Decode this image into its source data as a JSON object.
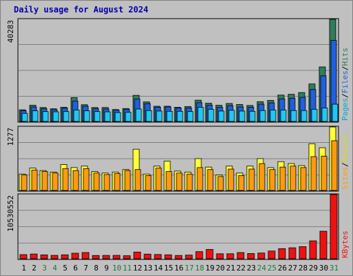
{
  "title": "Daily usage for August 2024",
  "chart_data": {
    "type": "bar",
    "categories": [
      "1",
      "2",
      "3",
      "4",
      "5",
      "6",
      "7",
      "8",
      "9",
      "10",
      "11",
      "12",
      "13",
      "14",
      "15",
      "16",
      "17",
      "18",
      "19",
      "20",
      "21",
      "22",
      "23",
      "24",
      "25",
      "26",
      "27",
      "28",
      "29",
      "30",
      "31"
    ],
    "weekend_days": [
      "3",
      "4",
      "10",
      "11",
      "17",
      "18",
      "24",
      "25",
      "31"
    ],
    "colors": {
      "hits": "#2e7d5b",
      "files": "#1f5fe0",
      "pages": "#20c8f0",
      "visits": "#ffff33",
      "sites": "#ff9a10",
      "kbytes": "#ee1111",
      "weekday_label": "#000000",
      "weekend_label": "#1a7a3a",
      "title": "#0000aa",
      "pages_label": "#00aacc",
      "files_label": "#1f5fe0",
      "hits_label": "#2e7d5b",
      "sites_label": "#ff9a10",
      "visits_label": "#dddd00",
      "kbytes_label": "#ee1111"
    },
    "panels": [
      {
        "id": "hits",
        "max_label": "40283",
        "ymax": 40283,
        "legend": [
          {
            "text": "Pages",
            "color_key": "pages_label"
          },
          {
            "text": "/",
            "color_key": "weekday_label"
          },
          {
            "text": "Files",
            "color_key": "files_label"
          },
          {
            "text": "/",
            "color_key": "weekday_label"
          },
          {
            "text": "Hits",
            "color_key": "hits_label"
          }
        ],
        "series": [
          {
            "name": "Hits",
            "color_key": "hits",
            "values": [
              4600,
              6400,
              5500,
              5000,
              5600,
              9400,
              6600,
              5500,
              5500,
              4700,
              5100,
              10300,
              7700,
              6000,
              6000,
              5600,
              5900,
              8400,
              7200,
              6400,
              7100,
              6700,
              6300,
              7800,
              8300,
              10400,
              10700,
              11400,
              14800,
              21500,
              40283
            ]
          },
          {
            "name": "Files",
            "color_key": "files",
            "values": [
              4200,
              5700,
              5000,
              4600,
              5200,
              8000,
              6000,
              5000,
              4900,
              4400,
              4700,
              8800,
              7000,
              5600,
              5700,
              5200,
              5300,
              7400,
              6400,
              5600,
              6200,
              5700,
              5600,
              6800,
              7300,
              8900,
              9100,
              9500,
              12600,
              18000,
              32000
            ]
          },
          {
            "name": "Pages",
            "color_key": "pages",
            "values": [
              3200,
              4200,
              3900,
              3800,
              3900,
              4500,
              4200,
              3900,
              3800,
              3500,
              3600,
              4900,
              4300,
              4100,
              4000,
              4000,
              3900,
              5600,
              4800,
              4100,
              4400,
              4100,
              4000,
              4300,
              4500,
              4500,
              4300,
              4300,
              4800,
              5300,
              6800
            ]
          }
        ]
      },
      {
        "id": "visits",
        "max_label": "1277",
        "ymax": 1277,
        "legend": [
          {
            "text": "Sites",
            "color_key": "sites_label"
          },
          {
            "text": "/",
            "color_key": "weekday_label"
          },
          {
            "text": "Visits",
            "color_key": "visits_label"
          }
        ],
        "series": [
          {
            "name": "Visits",
            "color_key": "visits",
            "values": [
              330,
              450,
              400,
              370,
              520,
              460,
              490,
              380,
              350,
              370,
              420,
              830,
              330,
              490,
              590,
              390,
              370,
              640,
              470,
              310,
              490,
              350,
              490,
              640,
              460,
              580,
              540,
              500,
              940,
              860,
              1277
            ]
          },
          {
            "name": "Sites",
            "color_key": "sites",
            "values": [
              310,
              410,
              380,
              350,
              440,
              400,
              440,
              350,
              320,
              340,
              400,
              420,
              300,
              450,
              380,
              350,
              330,
              460,
              420,
              280,
              430,
              300,
              430,
              540,
              420,
              470,
              490,
              460,
              680,
              690,
              1000
            ]
          }
        ]
      },
      {
        "id": "kbytes",
        "max_label": "10530552",
        "ymax": 10530552,
        "legend": [
          {
            "text": "KBytes",
            "color_key": "kbytes_label"
          }
        ],
        "series": [
          {
            "name": "KBytes",
            "color_key": "kbytes",
            "values": [
              680000,
              780000,
              640000,
              560000,
              650000,
              910000,
              1020000,
              540000,
              550000,
              560000,
              500000,
              1100000,
              760000,
              700000,
              650000,
              540000,
              600000,
              1170000,
              1530000,
              820000,
              820000,
              1020000,
              860000,
              940000,
              1270000,
              1660000,
              1800000,
              1990000,
              2940000,
              4520000,
              10530552
            ]
          }
        ]
      }
    ]
  }
}
